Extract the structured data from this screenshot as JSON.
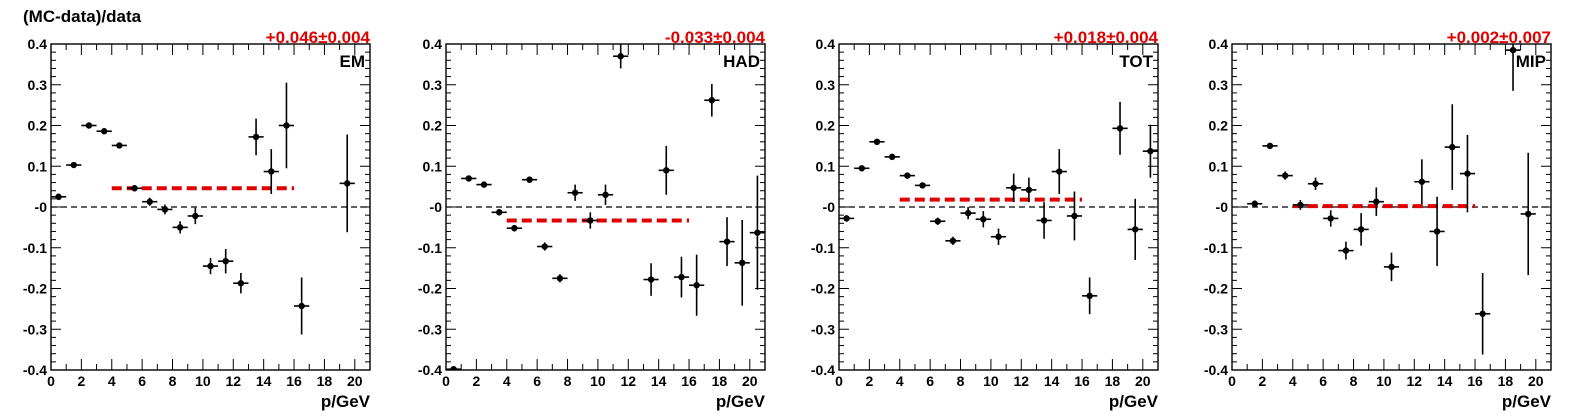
{
  "figure": {
    "ylabel": "(MC-data)/data",
    "xlabel": "p/GeV",
    "x_ticks": [
      0,
      2,
      4,
      6,
      8,
      10,
      12,
      14,
      16,
      18,
      20
    ],
    "y_ticks": [
      "-0.4",
      "-0.3",
      "-0.2",
      "-0.1",
      "-0",
      "0.1",
      "0.2",
      "0.3",
      "0.4"
    ],
    "colors": {
      "points": "#000000",
      "fit": "#e00000",
      "annotation": "#e00000",
      "zero_line": "#000000"
    }
  },
  "chart_data": [
    {
      "type": "scatter",
      "panel_label": "EM",
      "annotation": "+0.046±0.004",
      "xlabel": "p/GeV",
      "xlim": [
        0,
        21
      ],
      "ylim": [
        -0.4,
        0.4
      ],
      "fit": {
        "value": 0.046,
        "x_range": [
          4,
          16
        ]
      },
      "points": [
        {
          "x": 0.5,
          "y": 0.025,
          "yerr": 0.008
        },
        {
          "x": 1.5,
          "y": 0.103,
          "yerr": 0.006
        },
        {
          "x": 2.5,
          "y": 0.2,
          "yerr": 0.006
        },
        {
          "x": 3.5,
          "y": 0.186,
          "yerr": 0.007
        },
        {
          "x": 4.5,
          "y": 0.151,
          "yerr": 0.007
        },
        {
          "x": 5.5,
          "y": 0.046,
          "yerr": 0.008
        },
        {
          "x": 6.5,
          "y": 0.013,
          "yerr": 0.01
        },
        {
          "x": 7.5,
          "y": -0.006,
          "yerr": 0.012
        },
        {
          "x": 8.5,
          "y": -0.05,
          "yerr": 0.015
        },
        {
          "x": 9.5,
          "y": -0.022,
          "yerr": 0.02
        },
        {
          "x": 10.5,
          "y": -0.145,
          "yerr": 0.02
        },
        {
          "x": 11.5,
          "y": -0.133,
          "yerr": 0.03
        },
        {
          "x": 12.5,
          "y": -0.187,
          "yerr": 0.025
        },
        {
          "x": 13.5,
          "y": 0.172,
          "yerr": 0.045
        },
        {
          "x": 14.5,
          "y": 0.087,
          "yerr": 0.055
        },
        {
          "x": 15.5,
          "y": 0.2,
          "yerr": 0.105
        },
        {
          "x": 16.5,
          "y": -0.243,
          "yerr": 0.07
        },
        {
          "x": 19.5,
          "y": 0.058,
          "yerr": 0.12
        }
      ]
    },
    {
      "type": "scatter",
      "panel_label": "HAD",
      "annotation": "-0.033±0.004",
      "xlabel": "p/GeV",
      "xlim": [
        0,
        21
      ],
      "ylim": [
        -0.4,
        0.4
      ],
      "fit": {
        "value": -0.033,
        "x_range": [
          4,
          16
        ]
      },
      "points": [
        {
          "x": 0.5,
          "y": -0.398,
          "yerr": 0.005
        },
        {
          "x": 1.5,
          "y": 0.07,
          "yerr": 0.007
        },
        {
          "x": 2.5,
          "y": 0.055,
          "yerr": 0.007
        },
        {
          "x": 3.5,
          "y": -0.013,
          "yerr": 0.008
        },
        {
          "x": 4.5,
          "y": -0.052,
          "yerr": 0.008
        },
        {
          "x": 5.5,
          "y": 0.067,
          "yerr": 0.008
        },
        {
          "x": 6.5,
          "y": -0.097,
          "yerr": 0.01
        },
        {
          "x": 7.5,
          "y": -0.175,
          "yerr": 0.01
        },
        {
          "x": 8.5,
          "y": 0.035,
          "yerr": 0.02
        },
        {
          "x": 9.5,
          "y": -0.033,
          "yerr": 0.02
        },
        {
          "x": 10.5,
          "y": 0.03,
          "yerr": 0.025
        },
        {
          "x": 11.5,
          "y": 0.37,
          "yerr": 0.03
        },
        {
          "x": 13.5,
          "y": -0.178,
          "yerr": 0.04
        },
        {
          "x": 14.5,
          "y": 0.09,
          "yerr": 0.06
        },
        {
          "x": 15.5,
          "y": -0.172,
          "yerr": 0.05
        },
        {
          "x": 16.5,
          "y": -0.192,
          "yerr": 0.075
        },
        {
          "x": 17.5,
          "y": 0.262,
          "yerr": 0.04
        },
        {
          "x": 18.5,
          "y": -0.085,
          "yerr": 0.06
        },
        {
          "x": 19.5,
          "y": -0.137,
          "yerr": 0.105
        },
        {
          "x": 20.5,
          "y": -0.063,
          "yerr": 0.14
        }
      ]
    },
    {
      "type": "scatter",
      "panel_label": "TOT",
      "annotation": "+0.018±0.004",
      "xlabel": "p/GeV",
      "xlim": [
        0,
        21
      ],
      "ylim": [
        -0.4,
        0.4
      ],
      "fit": {
        "value": 0.018,
        "x_range": [
          4,
          16
        ]
      },
      "points": [
        {
          "x": 0.5,
          "y": -0.028,
          "yerr": 0.008
        },
        {
          "x": 1.5,
          "y": 0.095,
          "yerr": 0.006
        },
        {
          "x": 2.5,
          "y": 0.16,
          "yerr": 0.006
        },
        {
          "x": 3.5,
          "y": 0.123,
          "yerr": 0.006
        },
        {
          "x": 4.5,
          "y": 0.077,
          "yerr": 0.007
        },
        {
          "x": 5.5,
          "y": 0.053,
          "yerr": 0.007
        },
        {
          "x": 6.5,
          "y": -0.035,
          "yerr": 0.009
        },
        {
          "x": 7.5,
          "y": -0.083,
          "yerr": 0.01
        },
        {
          "x": 8.5,
          "y": -0.015,
          "yerr": 0.015
        },
        {
          "x": 9.5,
          "y": -0.03,
          "yerr": 0.02
        },
        {
          "x": 10.5,
          "y": -0.073,
          "yerr": 0.02
        },
        {
          "x": 11.5,
          "y": 0.047,
          "yerr": 0.035
        },
        {
          "x": 12.5,
          "y": 0.042,
          "yerr": 0.03
        },
        {
          "x": 13.5,
          "y": -0.033,
          "yerr": 0.045
        },
        {
          "x": 14.5,
          "y": 0.087,
          "yerr": 0.055
        },
        {
          "x": 15.5,
          "y": -0.022,
          "yerr": 0.06
        },
        {
          "x": 16.5,
          "y": -0.218,
          "yerr": 0.045
        },
        {
          "x": 18.5,
          "y": 0.193,
          "yerr": 0.065
        },
        {
          "x": 19.5,
          "y": -0.055,
          "yerr": 0.075
        },
        {
          "x": 20.5,
          "y": 0.137,
          "yerr": 0.065
        }
      ]
    },
    {
      "type": "scatter",
      "panel_label": "MIP",
      "annotation": "+0.002±0.007",
      "xlabel": "p/GeV",
      "xlim": [
        0,
        21
      ],
      "ylim": [
        -0.4,
        0.4
      ],
      "fit": {
        "value": 0.002,
        "x_range": [
          4,
          16
        ]
      },
      "points": [
        {
          "x": 1.5,
          "y": 0.008,
          "yerr": 0.008
        },
        {
          "x": 2.5,
          "y": 0.15,
          "yerr": 0.007
        },
        {
          "x": 3.5,
          "y": 0.077,
          "yerr": 0.01
        },
        {
          "x": 4.5,
          "y": 0.005,
          "yerr": 0.012
        },
        {
          "x": 5.5,
          "y": 0.057,
          "yerr": 0.015
        },
        {
          "x": 6.5,
          "y": -0.028,
          "yerr": 0.02
        },
        {
          "x": 7.5,
          "y": -0.107,
          "yerr": 0.022
        },
        {
          "x": 8.5,
          "y": -0.055,
          "yerr": 0.04
        },
        {
          "x": 9.5,
          "y": 0.013,
          "yerr": 0.035
        },
        {
          "x": 10.5,
          "y": -0.147,
          "yerr": 0.035
        },
        {
          "x": 12.5,
          "y": 0.062,
          "yerr": 0.055
        },
        {
          "x": 13.5,
          "y": -0.06,
          "yerr": 0.085
        },
        {
          "x": 14.5,
          "y": 0.147,
          "yerr": 0.105
        },
        {
          "x": 15.5,
          "y": 0.082,
          "yerr": 0.095
        },
        {
          "x": 16.5,
          "y": -0.262,
          "yerr": 0.1
        },
        {
          "x": 18.5,
          "y": 0.385,
          "yerr": 0.1
        },
        {
          "x": 19.5,
          "y": -0.017,
          "yerr": 0.15
        }
      ]
    }
  ]
}
